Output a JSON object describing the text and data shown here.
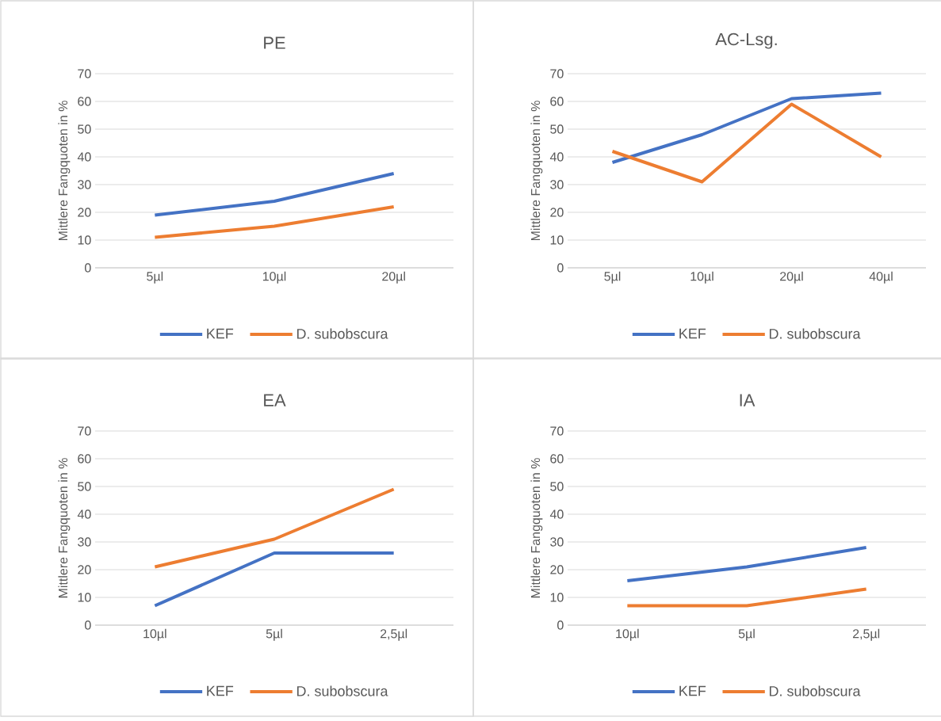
{
  "chart_data": [
    {
      "type": "line",
      "title": "PE",
      "ylabel": "Mittlere Fangquoten in %",
      "categories": [
        "5µl",
        "10µl",
        "20µl"
      ],
      "ylim": [
        0,
        70
      ],
      "yticks": [
        0,
        10,
        20,
        30,
        40,
        50,
        60,
        70
      ],
      "grid": "y",
      "legend": "bottom",
      "series": [
        {
          "name": "KEF",
          "color": "#4472c4",
          "values": [
            19,
            24,
            34
          ]
        },
        {
          "name": "D. subobscura",
          "color": "#ed7d31",
          "values": [
            11,
            15,
            22
          ]
        }
      ]
    },
    {
      "type": "line",
      "title": "AC-Lsg.",
      "ylabel": "Mittlere Fangquoten in %",
      "categories": [
        "5µl",
        "10µl",
        "20µl",
        "40µl"
      ],
      "ylim": [
        0,
        70
      ],
      "yticks": [
        0,
        10,
        20,
        30,
        40,
        50,
        60,
        70
      ],
      "grid": "y",
      "legend": "bottom",
      "series": [
        {
          "name": "KEF",
          "color": "#4472c4",
          "values": [
            38,
            48,
            61,
            63
          ]
        },
        {
          "name": "D. subobscura",
          "color": "#ed7d31",
          "values": [
            42,
            31,
            59,
            40
          ]
        }
      ]
    },
    {
      "type": "line",
      "title": "EA",
      "ylabel": "Mittlere Fangquoten in %",
      "categories": [
        "10µl",
        "5µl",
        "2,5µl"
      ],
      "ylim": [
        0,
        70
      ],
      "yticks": [
        0,
        10,
        20,
        30,
        40,
        50,
        60,
        70
      ],
      "grid": "y",
      "legend": "bottom",
      "series": [
        {
          "name": "KEF",
          "color": "#4472c4",
          "values": [
            7,
            26,
            26
          ]
        },
        {
          "name": "D. subobscura",
          "color": "#ed7d31",
          "values": [
            21,
            31,
            49
          ]
        }
      ]
    },
    {
      "type": "line",
      "title": "IA",
      "ylabel": "Mittlere Fangquoten in %",
      "categories": [
        "10µl",
        "5µl",
        "2,5µl"
      ],
      "ylim": [
        0,
        70
      ],
      "yticks": [
        0,
        10,
        20,
        30,
        40,
        50,
        60,
        70
      ],
      "grid": "y",
      "legend": "bottom",
      "series": [
        {
          "name": "KEF",
          "color": "#4472c4",
          "values": [
            16,
            21,
            28
          ]
        },
        {
          "name": "D. subobscura",
          "color": "#ed7d31",
          "values": [
            7,
            7,
            13
          ]
        }
      ]
    }
  ]
}
